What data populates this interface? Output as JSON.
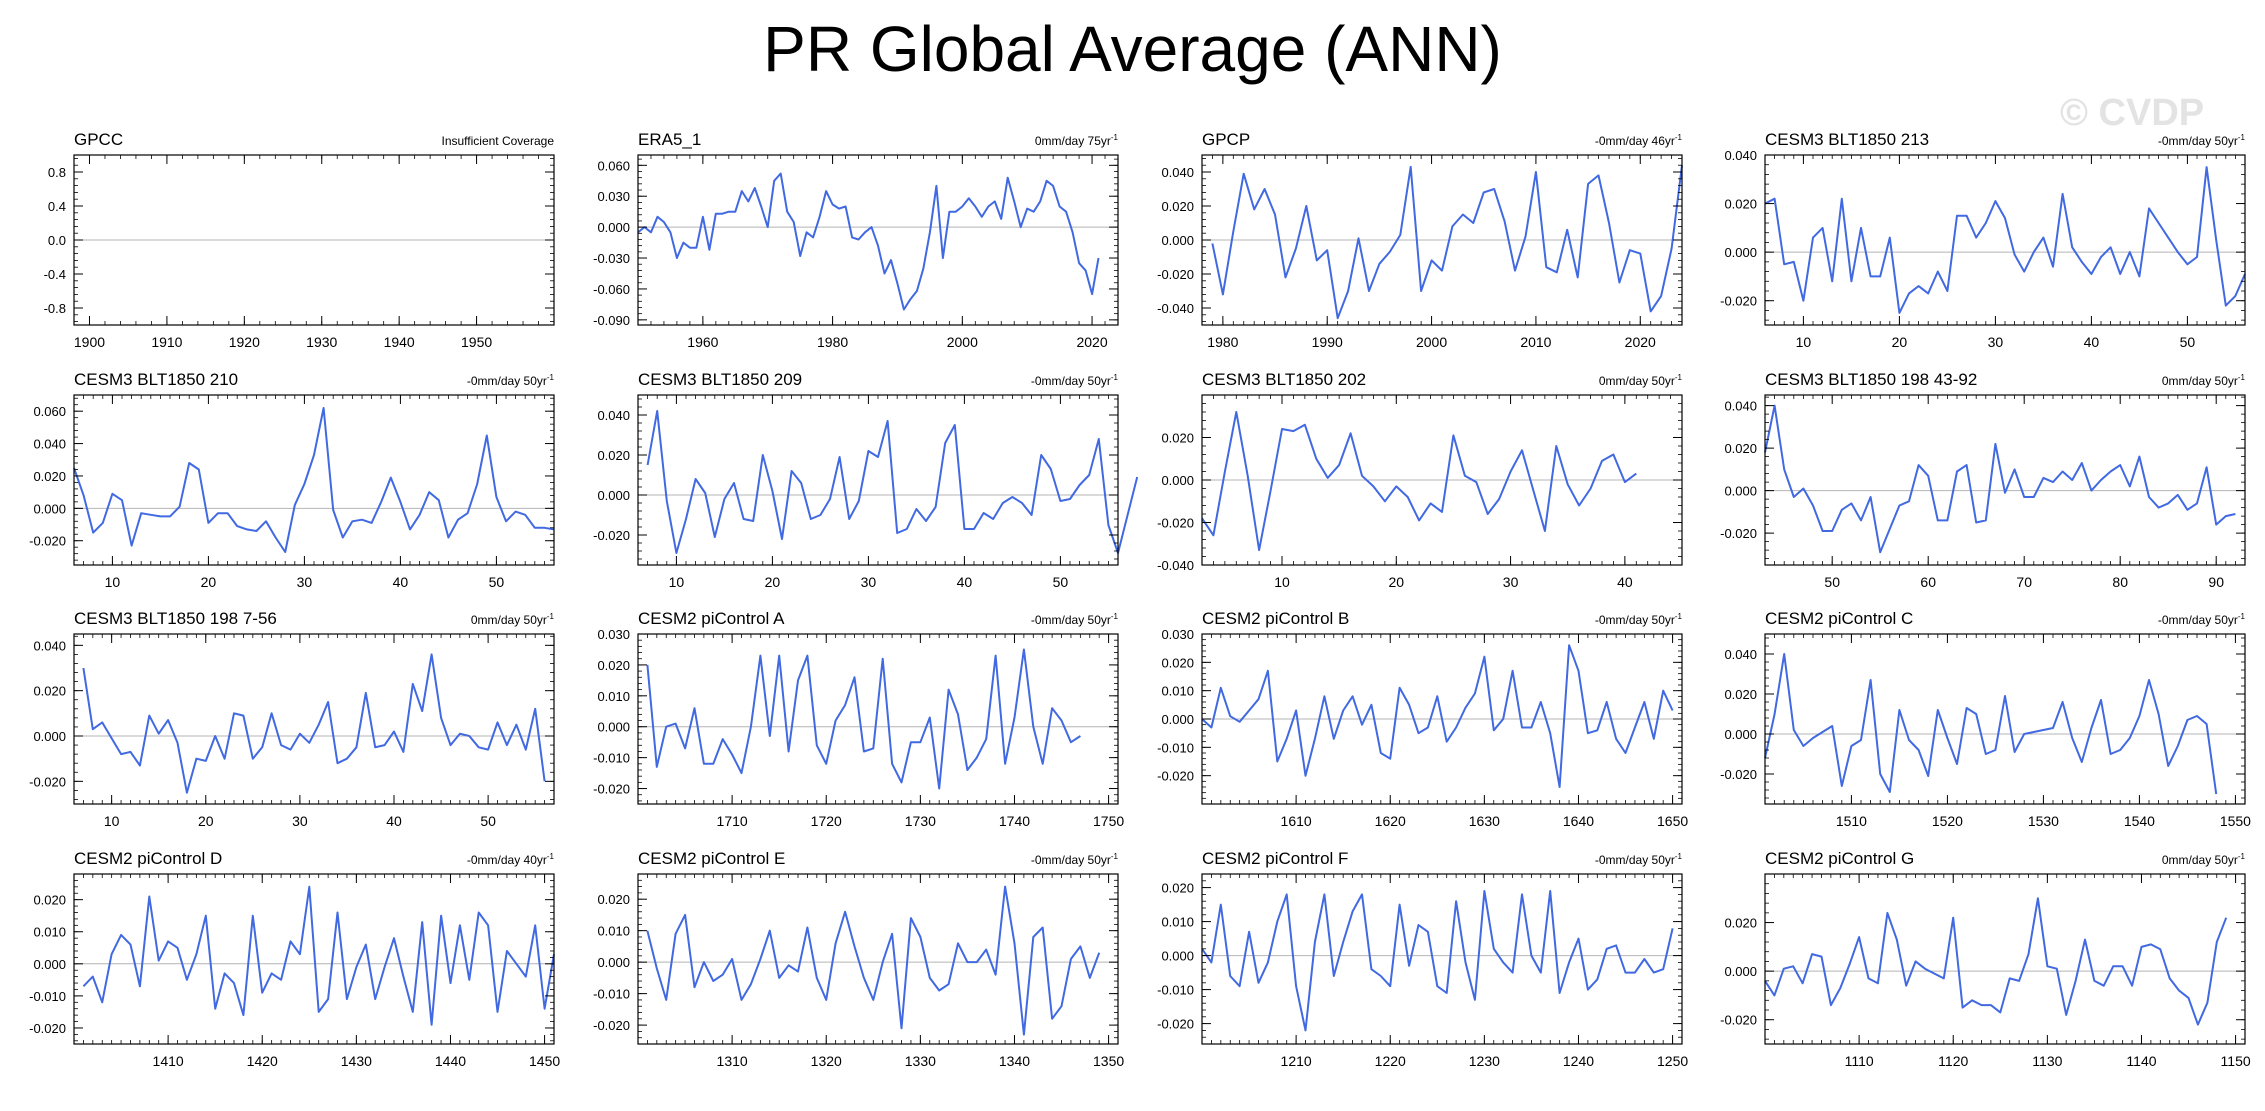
{
  "title": "PR Global Average (ANN)",
  "watermark": "© CVDP",
  "chart_data": [
    {
      "type": "line",
      "title": "GPCC",
      "trend": "Insufficient Coverage",
      "trend_sup": "",
      "xlim": [
        1898,
        1960
      ],
      "xticks": [
        1900,
        1910,
        1920,
        1930,
        1940,
        1950
      ],
      "ylim": [
        -1.0,
        1.0
      ],
      "yticks": [
        0.8,
        0.4,
        0.0,
        -0.4,
        -0.8
      ],
      "ydec": 1,
      "x0": 1900,
      "values": []
    },
    {
      "type": "line",
      "title": "ERA5_1",
      "trend": "0mm/day 75yr",
      "trend_sup": "-1",
      "xlim": [
        1950,
        2024
      ],
      "xticks": [
        1960,
        1980,
        2000,
        2020
      ],
      "ylim": [
        -0.095,
        0.07
      ],
      "yticks": [
        0.06,
        0.03,
        0.0,
        -0.03,
        -0.06,
        -0.09
      ],
      "ydec": 3,
      "x0": 1950,
      "values": [
        -0.005,
        0.0,
        -0.005,
        0.01,
        0.005,
        -0.005,
        -0.03,
        -0.015,
        -0.02,
        -0.02,
        0.01,
        -0.022,
        0.013,
        0.013,
        0.015,
        0.015,
        0.035,
        0.025,
        0.038,
        0.02,
        0.0,
        0.045,
        0.052,
        0.015,
        0.005,
        -0.028,
        -0.005,
        -0.01,
        0.01,
        0.035,
        0.022,
        0.018,
        0.02,
        -0.01,
        -0.012,
        -0.005,
        0.0,
        -0.018,
        -0.045,
        -0.032,
        -0.055,
        -0.08,
        -0.07,
        -0.062,
        -0.04,
        -0.005,
        0.04,
        -0.03,
        0.015,
        0.015,
        0.02,
        0.028,
        0.02,
        0.01,
        0.02,
        0.025,
        0.008,
        0.048,
        0.025,
        0.0,
        0.018,
        0.015,
        0.025,
        0.045,
        0.04,
        0.02,
        0.015,
        -0.005,
        -0.035,
        -0.042,
        -0.065,
        -0.03
      ]
    },
    {
      "type": "line",
      "title": "GPCP",
      "trend": "-0mm/day 46yr",
      "trend_sup": "-1",
      "xlim": [
        1978,
        2024
      ],
      "xticks": [
        1980,
        1990,
        2000,
        2010,
        2020
      ],
      "ylim": [
        -0.05,
        0.05
      ],
      "yticks": [
        0.04,
        0.02,
        0.0,
        -0.02,
        -0.04
      ],
      "ydec": 3,
      "x0": 1979,
      "values": [
        -0.002,
        -0.032,
        0.005,
        0.039,
        0.018,
        0.03,
        0.015,
        -0.022,
        -0.005,
        0.02,
        -0.012,
        -0.006,
        -0.046,
        -0.03,
        0.001,
        -0.03,
        -0.014,
        -0.007,
        0.003,
        0.043,
        -0.03,
        -0.012,
        -0.018,
        0.008,
        0.015,
        0.01,
        0.028,
        0.03,
        0.011,
        -0.018,
        0.002,
        0.04,
        -0.016,
        -0.019,
        0.006,
        -0.022,
        0.033,
        0.038,
        0.01,
        -0.025,
        -0.006,
        -0.008,
        -0.042,
        -0.033,
        -0.005,
        0.044
      ]
    },
    {
      "type": "line",
      "title": "CESM3 BLT1850 213",
      "trend": "-0mm/day 50yr",
      "trend_sup": "-1",
      "xlim": [
        6,
        56
      ],
      "xticks": [
        10,
        20,
        30,
        40,
        50
      ],
      "ylim": [
        -0.03,
        0.04
      ],
      "yticks": [
        0.04,
        0.02,
        0.0,
        -0.02
      ],
      "ydec": 3,
      "x0": 6,
      "values": [
        0.02,
        0.022,
        -0.005,
        -0.004,
        -0.02,
        0.006,
        0.01,
        -0.012,
        0.022,
        -0.012,
        0.01,
        -0.01,
        -0.01,
        0.006,
        -0.025,
        -0.017,
        -0.014,
        -0.017,
        -0.008,
        -0.016,
        0.015,
        0.015,
        0.006,
        0.012,
        0.021,
        0.014,
        -0.001,
        -0.008,
        0.0,
        0.006,
        -0.006,
        0.024,
        0.002,
        -0.004,
        -0.009,
        -0.002,
        0.002,
        -0.009,
        0.0,
        -0.01,
        0.018,
        0.012,
        0.006,
        0.0,
        -0.005,
        -0.002,
        0.035,
        0.005,
        -0.022,
        -0.018,
        -0.009
      ]
    },
    {
      "type": "line",
      "title": "CESM3 BLT1850 210",
      "trend": "-0mm/day 50yr",
      "trend_sup": "-1",
      "xlim": [
        6,
        56
      ],
      "xticks": [
        10,
        20,
        30,
        40,
        50
      ],
      "ylim": [
        -0.035,
        0.07
      ],
      "yticks": [
        0.06,
        0.04,
        0.02,
        0.0,
        -0.02
      ],
      "ydec": 3,
      "x0": 6,
      "values": [
        0.025,
        0.008,
        -0.015,
        -0.009,
        0.009,
        0.005,
        -0.023,
        -0.003,
        -0.004,
        -0.005,
        -0.005,
        0.001,
        0.028,
        0.024,
        -0.009,
        -0.003,
        -0.003,
        -0.011,
        -0.013,
        -0.014,
        -0.008,
        -0.018,
        -0.027,
        0.002,
        0.015,
        0.033,
        0.062,
        -0.001,
        -0.018,
        -0.008,
        -0.007,
        -0.009,
        0.004,
        0.019,
        0.004,
        -0.013,
        -0.004,
        0.01,
        0.005,
        -0.018,
        -0.007,
        -0.003,
        0.015,
        0.045,
        0.007,
        -0.008,
        -0.002,
        -0.004,
        -0.012,
        -0.012,
        -0.013
      ]
    },
    {
      "type": "line",
      "title": "CESM3 BLT1850 209",
      "trend": "-0mm/day 50yr",
      "trend_sup": "-1",
      "xlim": [
        6,
        56
      ],
      "xticks": [
        10,
        20,
        30,
        40,
        50
      ],
      "ylim": [
        -0.035,
        0.05
      ],
      "yticks": [
        0.04,
        0.02,
        0.0,
        -0.02
      ],
      "ydec": 3,
      "x0": 7,
      "values": [
        0.015,
        0.042,
        -0.003,
        -0.029,
        -0.012,
        0.008,
        0.001,
        -0.021,
        -0.002,
        0.006,
        -0.012,
        -0.013,
        0.02,
        0.002,
        -0.022,
        0.012,
        0.006,
        -0.012,
        -0.01,
        -0.002,
        0.019,
        -0.012,
        -0.003,
        0.022,
        0.019,
        0.037,
        -0.019,
        -0.017,
        -0.007,
        -0.013,
        -0.006,
        0.026,
        0.035,
        -0.017,
        -0.017,
        -0.009,
        -0.012,
        -0.004,
        -0.001,
        -0.004,
        -0.01,
        0.02,
        0.013,
        -0.003,
        -0.002,
        0.005,
        0.01,
        0.028,
        -0.015,
        -0.029,
        -0.01,
        0.009
      ]
    },
    {
      "type": "line",
      "title": "CESM3 BLT1850 202",
      "trend": "0mm/day 50yr",
      "trend_sup": "-1",
      "xlim": [
        3,
        45
      ],
      "xticks": [
        10,
        20,
        30,
        40
      ],
      "ylim": [
        -0.04,
        0.04
      ],
      "yticks": [
        0.02,
        0.0,
        -0.02,
        -0.04
      ],
      "ydec": 3,
      "x0": 3,
      "values": [
        -0.018,
        -0.026,
        0.004,
        0.032,
        0.002,
        -0.033,
        -0.005,
        0.024,
        0.023,
        0.026,
        0.01,
        0.001,
        0.007,
        0.022,
        0.002,
        -0.003,
        -0.01,
        -0.003,
        -0.008,
        -0.019,
        -0.011,
        -0.015,
        0.021,
        0.002,
        -0.001,
        -0.016,
        -0.009,
        0.004,
        0.014,
        -0.005,
        -0.024,
        0.016,
        -0.002,
        -0.012,
        -0.004,
        0.009,
        0.012,
        -0.001,
        0.003
      ]
    },
    {
      "type": "line",
      "title": "CESM3 BLT1850 198 43-92",
      "trend": "0mm/day 50yr",
      "trend_sup": "-1",
      "xlim": [
        43,
        93
      ],
      "xticks": [
        50,
        60,
        70,
        80,
        90
      ],
      "ylim": [
        -0.035,
        0.045
      ],
      "yticks": [
        0.04,
        0.02,
        0.0,
        -0.02
      ],
      "ydec": 3,
      "x0": 43,
      "values": [
        0.018,
        0.04,
        0.01,
        -0.003,
        0.001,
        -0.007,
        -0.019,
        -0.019,
        -0.009,
        -0.006,
        -0.014,
        -0.003,
        -0.029,
        -0.018,
        -0.007,
        -0.005,
        0.012,
        0.007,
        -0.014,
        -0.014,
        0.009,
        0.012,
        -0.015,
        -0.014,
        0.022,
        -0.001,
        0.01,
        -0.003,
        -0.003,
        0.006,
        0.004,
        0.009,
        0.005,
        0.013,
        0.0,
        0.005,
        0.009,
        0.012,
        0.002,
        0.016,
        -0.003,
        -0.008,
        -0.006,
        -0.002,
        -0.009,
        -0.006,
        0.011,
        -0.016,
        -0.012,
        -0.011
      ]
    },
    {
      "type": "line",
      "title": "CESM3 BLT1850 198 7-56",
      "trend": "0mm/day 50yr",
      "trend_sup": "-1",
      "xlim": [
        6,
        57
      ],
      "xticks": [
        10,
        20,
        30,
        40,
        50
      ],
      "ylim": [
        -0.03,
        0.045
      ],
      "yticks": [
        0.04,
        0.02,
        0.0,
        -0.02
      ],
      "ydec": 3,
      "x0": 7,
      "values": [
        0.03,
        0.003,
        0.006,
        -0.001,
        -0.008,
        -0.007,
        -0.013,
        0.009,
        0.001,
        0.007,
        -0.003,
        -0.025,
        -0.01,
        -0.011,
        0.0,
        -0.01,
        0.01,
        0.009,
        -0.01,
        -0.005,
        0.01,
        -0.004,
        -0.006,
        0.001,
        -0.003,
        0.005,
        0.015,
        -0.012,
        -0.01,
        -0.005,
        0.019,
        -0.005,
        -0.004,
        0.002,
        -0.007,
        0.023,
        0.011,
        0.036,
        0.008,
        -0.004,
        0.001,
        0.0,
        -0.005,
        -0.006,
        0.006,
        -0.004,
        0.005,
        -0.006,
        0.012,
        -0.02
      ]
    },
    {
      "type": "line",
      "title": "CESM2 piControl A",
      "trend": "-0mm/day 50yr",
      "trend_sup": "-1",
      "xlim": [
        1700,
        1751
      ],
      "xticks": [
        1710,
        1720,
        1730,
        1740,
        1750
      ],
      "ylim": [
        -0.025,
        0.03
      ],
      "yticks": [
        0.03,
        0.02,
        0.01,
        0.0,
        -0.01,
        -0.02
      ],
      "ydec": 3,
      "x0": 1701,
      "values": [
        0.02,
        -0.013,
        0.0,
        0.001,
        -0.007,
        0.006,
        -0.012,
        -0.012,
        -0.004,
        -0.009,
        -0.015,
        0.0,
        0.023,
        -0.003,
        0.023,
        -0.008,
        0.015,
        0.023,
        -0.006,
        -0.012,
        0.002,
        0.007,
        0.016,
        -0.008,
        -0.007,
        0.022,
        -0.012,
        -0.018,
        -0.005,
        -0.005,
        0.003,
        -0.02,
        0.012,
        0.004,
        -0.014,
        -0.01,
        -0.004,
        0.023,
        -0.012,
        0.003,
        0.025,
        0.0,
        -0.012,
        0.006,
        0.002,
        -0.005,
        -0.003
      ]
    },
    {
      "type": "line",
      "title": "CESM2 piControl B",
      "trend": "-0mm/day 50yr",
      "trend_sup": "-1",
      "xlim": [
        1600,
        1651
      ],
      "xticks": [
        1610,
        1620,
        1630,
        1640,
        1650
      ],
      "ylim": [
        -0.03,
        0.03
      ],
      "yticks": [
        0.03,
        0.02,
        0.01,
        0.0,
        -0.01,
        -0.02
      ],
      "ydec": 3,
      "x0": 1600,
      "values": [
        0.0,
        -0.003,
        0.011,
        0.001,
        -0.001,
        0.003,
        0.007,
        0.017,
        -0.015,
        -0.007,
        0.003,
        -0.02,
        -0.007,
        0.008,
        -0.007,
        0.003,
        0.008,
        -0.002,
        0.005,
        -0.012,
        -0.014,
        0.011,
        0.005,
        -0.005,
        -0.003,
        0.008,
        -0.008,
        -0.003,
        0.004,
        0.009,
        0.022,
        -0.004,
        0.0,
        0.017,
        -0.003,
        -0.003,
        0.006,
        -0.005,
        -0.024,
        0.026,
        0.017,
        -0.005,
        -0.004,
        0.006,
        -0.007,
        -0.012,
        -0.003,
        0.006,
        -0.007,
        0.01,
        0.003
      ]
    },
    {
      "type": "line",
      "title": "CESM2 piControl C",
      "trend": "-0mm/day 50yr",
      "trend_sup": "-1",
      "xlim": [
        1501,
        1551
      ],
      "xticks": [
        1510,
        1520,
        1530,
        1540,
        1550
      ],
      "ylim": [
        -0.035,
        0.05
      ],
      "yticks": [
        0.04,
        0.02,
        0.0,
        -0.02
      ],
      "ydec": 3,
      "x0": 1501,
      "values": [
        -0.012,
        0.01,
        0.04,
        0.002,
        -0.006,
        -0.002,
        0.001,
        0.004,
        -0.026,
        -0.006,
        -0.003,
        0.027,
        -0.02,
        -0.029,
        0.012,
        -0.003,
        -0.008,
        -0.021,
        0.012,
        -0.002,
        -0.015,
        0.013,
        0.01,
        -0.01,
        -0.008,
        0.019,
        -0.009,
        0.0,
        0.001,
        0.002,
        0.003,
        0.016,
        -0.002,
        -0.014,
        0.003,
        0.017,
        -0.01,
        -0.008,
        -0.002,
        0.009,
        0.027,
        0.01,
        -0.016,
        -0.006,
        0.007,
        0.009,
        0.005,
        -0.03
      ]
    },
    {
      "type": "line",
      "title": "CESM2 piControl D",
      "trend": "-0mm/day 40yr",
      "trend_sup": "-1",
      "xlim": [
        1400,
        1451
      ],
      "xticks": [
        1410,
        1420,
        1430,
        1440,
        1450
      ],
      "ylim": [
        -0.025,
        0.028
      ],
      "yticks": [
        0.02,
        0.01,
        0.0,
        -0.01,
        -0.02
      ],
      "ydec": 3,
      "x0": 1401,
      "values": [
        -0.007,
        -0.004,
        -0.012,
        0.003,
        0.009,
        0.006,
        -0.007,
        0.021,
        0.001,
        0.007,
        0.005,
        -0.005,
        0.003,
        0.015,
        -0.014,
        -0.003,
        -0.006,
        -0.016,
        0.015,
        -0.009,
        -0.003,
        -0.005,
        0.007,
        0.003,
        0.024,
        -0.015,
        -0.011,
        0.016,
        -0.011,
        -0.001,
        0.006,
        -0.011,
        -0.001,
        0.008,
        -0.004,
        -0.015,
        0.013,
        -0.019,
        0.015,
        -0.006,
        0.012,
        -0.005,
        0.016,
        0.012,
        -0.015,
        0.004,
        0.0,
        -0.004,
        0.012,
        -0.014,
        0.003
      ]
    },
    {
      "type": "line",
      "title": "CESM2 piControl E",
      "trend": "-0mm/day 50yr",
      "trend_sup": "-1",
      "xlim": [
        1300,
        1351
      ],
      "xticks": [
        1310,
        1320,
        1330,
        1340,
        1350
      ],
      "ylim": [
        -0.026,
        0.028
      ],
      "yticks": [
        0.02,
        0.01,
        0.0,
        -0.01,
        -0.02
      ],
      "ydec": 3,
      "x0": 1301,
      "values": [
        0.01,
        -0.002,
        -0.012,
        0.009,
        0.015,
        -0.008,
        0.0,
        -0.006,
        -0.004,
        0.001,
        -0.012,
        -0.007,
        0.001,
        0.01,
        -0.005,
        -0.001,
        -0.003,
        0.011,
        -0.005,
        -0.012,
        0.006,
        0.016,
        0.005,
        -0.005,
        -0.012,
        0.0,
        0.009,
        -0.021,
        0.014,
        0.008,
        -0.005,
        -0.009,
        -0.007,
        0.006,
        0.0,
        0.0,
        0.004,
        -0.004,
        0.024,
        0.006,
        -0.023,
        0.008,
        0.011,
        -0.018,
        -0.014,
        0.001,
        0.005,
        -0.005,
        0.003
      ]
    },
    {
      "type": "line",
      "title": "CESM2 piControl F",
      "trend": "-0mm/day 50yr",
      "trend_sup": "-1",
      "xlim": [
        1200,
        1251
      ],
      "xticks": [
        1210,
        1220,
        1230,
        1240,
        1250
      ],
      "ylim": [
        -0.026,
        0.024
      ],
      "yticks": [
        0.02,
        0.01,
        0.0,
        -0.01,
        -0.02
      ],
      "ydec": 3,
      "x0": 1200,
      "values": [
        0.002,
        -0.002,
        0.015,
        -0.006,
        -0.009,
        0.007,
        -0.008,
        -0.002,
        0.01,
        0.018,
        -0.009,
        -0.022,
        0.004,
        0.018,
        -0.006,
        0.004,
        0.013,
        0.018,
        -0.004,
        -0.006,
        -0.009,
        0.015,
        -0.003,
        0.009,
        0.007,
        -0.009,
        -0.011,
        0.016,
        -0.002,
        -0.013,
        0.019,
        0.002,
        -0.002,
        -0.005,
        0.018,
        0.0,
        -0.005,
        0.019,
        -0.011,
        -0.002,
        0.005,
        -0.01,
        -0.007,
        0.002,
        0.003,
        -0.005,
        -0.005,
        -0.001,
        -0.005,
        -0.004,
        0.008
      ]
    },
    {
      "type": "line",
      "title": "CESM2 piControl G",
      "trend": "0mm/day 50yr",
      "trend_sup": "-1",
      "xlim": [
        1100,
        1151
      ],
      "xticks": [
        1110,
        1120,
        1130,
        1140,
        1150
      ],
      "ylim": [
        -0.03,
        0.04
      ],
      "yticks": [
        0.02,
        0.0,
        -0.02
      ],
      "ydec": 3,
      "x0": 1100,
      "values": [
        -0.004,
        -0.01,
        0.001,
        0.002,
        -0.005,
        0.007,
        0.006,
        -0.014,
        -0.007,
        0.003,
        0.014,
        -0.003,
        -0.005,
        0.024,
        0.013,
        -0.006,
        0.004,
        0.001,
        -0.001,
        -0.003,
        0.022,
        -0.015,
        -0.012,
        -0.014,
        -0.014,
        -0.017,
        -0.003,
        -0.004,
        0.007,
        0.03,
        0.002,
        0.001,
        -0.018,
        -0.004,
        0.013,
        -0.004,
        -0.006,
        0.002,
        0.002,
        -0.006,
        0.01,
        0.011,
        0.009,
        -0.003,
        -0.008,
        -0.011,
        -0.022,
        -0.013,
        0.012,
        0.022
      ]
    }
  ]
}
